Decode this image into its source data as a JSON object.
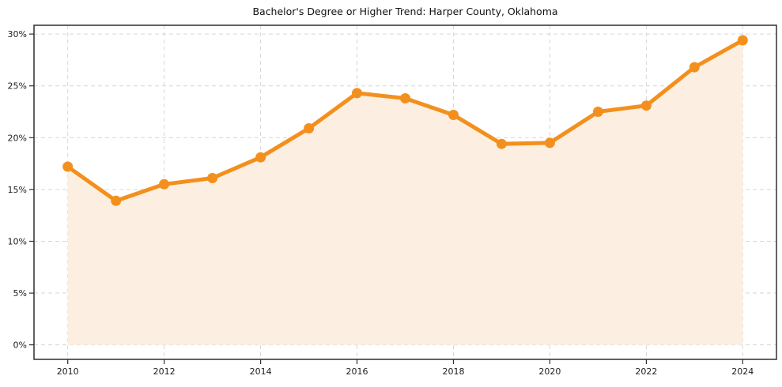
{
  "figure": {
    "background": "#ffffff"
  },
  "chart_data": {
    "type": "line",
    "title": "Bachelor's Degree or Higher Trend: Harper County, Oklahoma",
    "x": [
      2010,
      2011,
      2012,
      2013,
      2014,
      2015,
      2016,
      2017,
      2018,
      2019,
      2020,
      2021,
      2022,
      2023,
      2024
    ],
    "values": [
      17.2,
      13.9,
      15.5,
      16.1,
      18.1,
      20.9,
      24.3,
      23.8,
      22.2,
      19.4,
      19.5,
      22.5,
      23.1,
      26.8,
      29.4
    ],
    "area_fill": true,
    "marker": "circle",
    "xlabel": "",
    "ylabel": "",
    "legend": "none",
    "axes": {
      "xlim": [
        2009.3,
        2024.7
      ],
      "ylim": [
        -1.4,
        30.85
      ],
      "x_ticks": [
        2010,
        2012,
        2014,
        2016,
        2018,
        2020,
        2022,
        2024
      ],
      "x_tick_labels": [
        "2010",
        "2012",
        "2014",
        "2016",
        "2018",
        "2020",
        "2022",
        "2024"
      ],
      "y_ticks": [
        0,
        5,
        10,
        15,
        20,
        25,
        30
      ],
      "y_tick_labels": [
        "0%",
        "5%",
        "10%",
        "15%",
        "20%",
        "25%",
        "30%"
      ],
      "grid": true,
      "grid_style": "dashed"
    },
    "colors": {
      "line": "#f3901d",
      "fill": "#fcefe1",
      "grid": "#d6d6d6",
      "spine": "#2e2e2e",
      "text": "#1c1c1c"
    }
  }
}
